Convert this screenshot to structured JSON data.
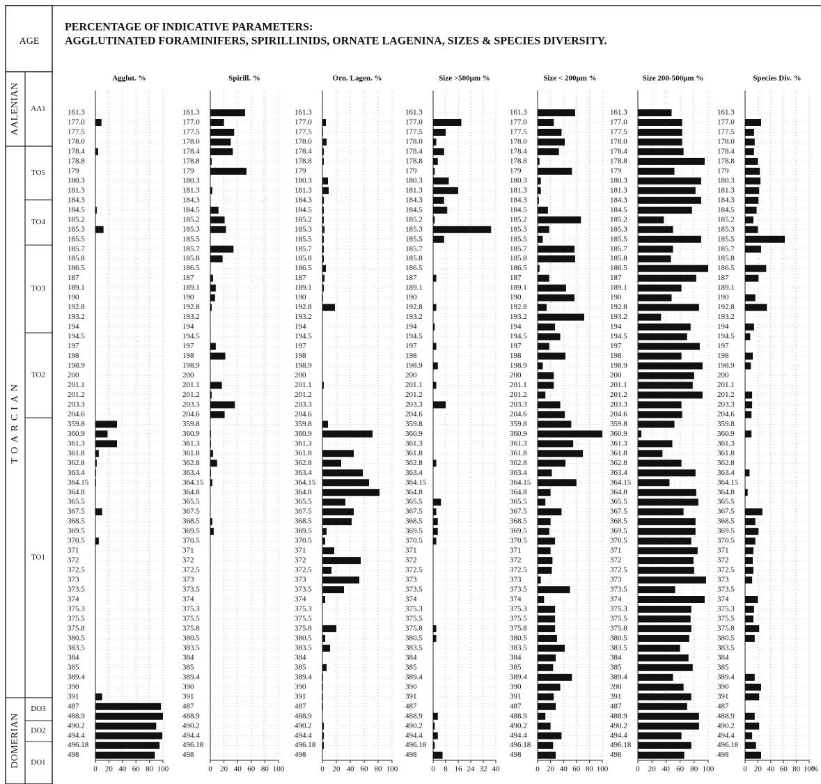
{
  "title": "PERCENTAGE OF INDICATIVE PARAMETERS:",
  "subtitle": "AGGLUTINATED FORAMINIFERS, SPIRILLINIDS, ORNATE LAGENINA, SIZES  &  SPECIES DIVERSITY.",
  "age": {
    "header": "AGE",
    "stages": [
      "AALENIAN",
      "TOARCIAN",
      "DOMERIAN"
    ],
    "zones": [
      "AA1",
      "TO5",
      "TO4",
      "TO3",
      "TO2",
      "TO1",
      "DO3",
      "DO2",
      "DO1"
    ]
  },
  "depths": [
    "161.3",
    "177.0",
    "177.5",
    "178.0",
    "178.4",
    "178.8",
    "179",
    "180.3",
    "181.3",
    "184.3",
    "184.5",
    "185.2",
    "185.3",
    "185.5",
    "185.7",
    "185.8",
    "186.5",
    "187",
    "189.1",
    "190",
    "192.8",
    "193.2",
    "194",
    "194.5",
    "197",
    "198",
    "198.9",
    "200",
    "201.1",
    "201.2",
    "203.3",
    "204.6",
    "359.8",
    "360.9",
    "361.3",
    "361.8",
    "362.8",
    "363.4",
    "364.15",
    "364.8",
    "365.5",
    "367.5",
    "368.5",
    "369.5",
    "370.5",
    "371",
    "372",
    "372.5",
    "373",
    "373.5",
    "374",
    "375.3",
    "375.5",
    "375.8",
    "380.5",
    "383.5",
    "384",
    "385",
    "389.4",
    "390",
    "391",
    "487",
    "488.9",
    "490.2",
    "494.4",
    "496.18",
    "498"
  ],
  "chart_data": [
    {
      "type": "bar",
      "title": "Agglut.  %",
      "color": "#111111",
      "xlim": [
        0,
        100
      ],
      "xticks": [
        0,
        20,
        40,
        60,
        80,
        100
      ],
      "values": [
        0,
        9,
        0,
        0,
        4,
        0,
        0,
        0,
        0,
        0,
        2,
        0,
        12,
        0,
        0,
        0,
        0,
        0,
        0,
        0,
        0,
        0,
        0,
        0,
        0,
        0,
        0,
        0,
        0,
        0,
        0,
        0,
        32,
        18,
        32,
        5,
        2,
        1,
        1,
        0,
        0,
        10,
        0,
        0,
        5,
        0,
        0,
        0,
        0,
        0,
        0,
        0,
        0,
        0,
        0,
        0,
        0,
        0,
        0,
        0,
        10,
        97,
        100,
        90,
        99,
        95,
        88
      ]
    },
    {
      "type": "bar",
      "title": "Spirill.  %",
      "color": "#111111",
      "xlim": [
        0,
        100
      ],
      "xticks": [
        0,
        20,
        40,
        60,
        80,
        100
      ],
      "values": [
        51,
        20,
        35,
        30,
        33,
        2,
        53,
        0,
        3,
        0,
        12,
        21,
        23,
        0,
        34,
        18,
        0,
        4,
        8,
        7,
        2,
        0,
        0,
        0,
        8,
        22,
        0,
        0,
        17,
        2,
        36,
        21,
        0,
        1,
        1,
        4,
        10,
        1,
        3,
        0,
        0,
        0,
        3,
        5,
        0,
        0,
        0,
        0,
        0,
        0,
        0,
        0,
        0,
        0,
        0,
        0,
        0,
        0,
        0,
        0,
        0,
        0,
        0,
        0,
        0,
        0,
        0
      ]
    },
    {
      "type": "bar",
      "title": "Orn. Lagen. %",
      "color": "#111111",
      "xlim": [
        0,
        100
      ],
      "xticks": [
        0,
        20,
        40,
        60,
        80,
        100
      ],
      "values": [
        0,
        5,
        1,
        6,
        2,
        2,
        0,
        8,
        9,
        2,
        2,
        2,
        3,
        2,
        2,
        2,
        5,
        3,
        2,
        1,
        18,
        0,
        0,
        0,
        0,
        0,
        0,
        0,
        2,
        0,
        0,
        0,
        8,
        72,
        0,
        45,
        27,
        58,
        67,
        82,
        33,
        45,
        42,
        6,
        4,
        17,
        55,
        13,
        53,
        31,
        4,
        0,
        0,
        20,
        4,
        11,
        0,
        6,
        1,
        1,
        1,
        1,
        0,
        2,
        2,
        2,
        0
      ]
    },
    {
      "type": "bar",
      "title": "Size >500μm  %",
      "color": "#111111",
      "xlim": [
        0,
        40
      ],
      "xticks": [
        0,
        8,
        16,
        24,
        32,
        40
      ],
      "values": [
        0,
        18,
        8,
        2,
        7,
        3,
        1,
        10,
        16,
        7,
        9,
        1,
        37,
        7,
        0,
        0,
        0,
        2,
        0,
        0,
        2,
        0,
        1,
        0,
        2,
        0,
        3,
        0,
        2,
        0,
        8,
        0,
        0,
        0,
        0,
        0,
        2,
        0,
        0,
        0,
        5,
        2,
        3,
        3,
        2,
        0,
        0,
        0,
        0,
        0,
        0,
        0,
        0,
        2,
        2,
        0,
        0,
        0,
        0,
        0,
        0,
        0,
        3,
        1,
        3,
        1,
        6
      ]
    },
    {
      "type": "bar",
      "title": "Size < 200μm %",
      "color": "#111111",
      "xlim": [
        0,
        100
      ],
      "xticks": [
        0,
        20,
        40,
        60,
        80,
        100
      ],
      "values": [
        58,
        25,
        37,
        42,
        33,
        3,
        53,
        5,
        5,
        2,
        16,
        67,
        18,
        8,
        57,
        58,
        3,
        18,
        44,
        57,
        14,
        72,
        27,
        35,
        18,
        43,
        8,
        25,
        25,
        12,
        35,
        42,
        52,
        100,
        55,
        70,
        43,
        22,
        60,
        20,
        12,
        37,
        20,
        18,
        27,
        20,
        23,
        22,
        5,
        50,
        10,
        27,
        27,
        27,
        30,
        42,
        28,
        24,
        53,
        35,
        25,
        28,
        12,
        20,
        37,
        24,
        28
      ]
    },
    {
      "type": "bar",
      "title": "Size 200-500μm %",
      "color": "#111111",
      "xlim": [
        0,
        100
      ],
      "xticks": [
        0,
        20,
        40,
        60,
        80,
        100
      ],
      "values": [
        48,
        63,
        63,
        63,
        65,
        95,
        52,
        90,
        82,
        90,
        77,
        37,
        50,
        90,
        50,
        47,
        100,
        83,
        62,
        48,
        87,
        33,
        75,
        70,
        88,
        62,
        92,
        80,
        78,
        92,
        62,
        63,
        52,
        5,
        49,
        35,
        62,
        82,
        45,
        83,
        86,
        65,
        82,
        82,
        76,
        85,
        79,
        80,
        97,
        53,
        95,
        76,
        75,
        76,
        73,
        60,
        72,
        78,
        50,
        65,
        76,
        70,
        87,
        87,
        62,
        76,
        66
      ]
    },
    {
      "type": "bar",
      "title": "Species Div. %",
      "color": "#111111",
      "xlim": [
        0,
        100
      ],
      "xticks": [
        0,
        20,
        40,
        60,
        80,
        100
      ],
      "xlabel": "%",
      "values": [
        0,
        25,
        14,
        15,
        14,
        20,
        23,
        24,
        22,
        21,
        18,
        13,
        20,
        62,
        25,
        0,
        33,
        21,
        0,
        16,
        34,
        0,
        14,
        8,
        0,
        12,
        9,
        0,
        0,
        11,
        11,
        10,
        0,
        10,
        0,
        0,
        0,
        7,
        0,
        4,
        0,
        27,
        16,
        21,
        16,
        13,
        12,
        13,
        11,
        0,
        20,
        14,
        13,
        22,
        15,
        0,
        0,
        0,
        15,
        25,
        22,
        0,
        15,
        22,
        11,
        17,
        25
      ]
    }
  ]
}
